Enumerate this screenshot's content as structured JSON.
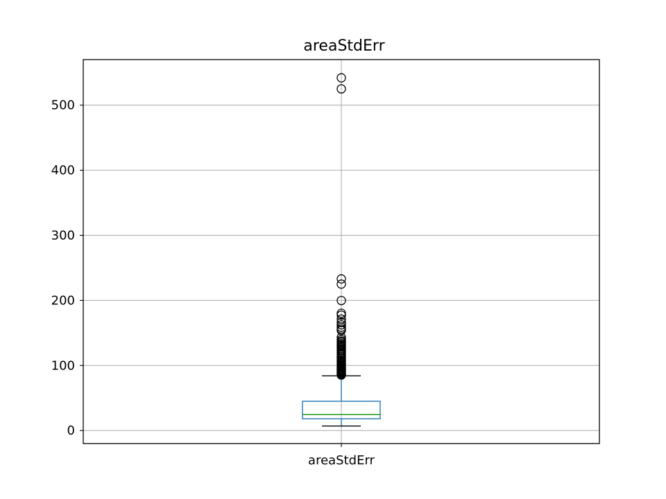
{
  "chart_data": {
    "type": "box",
    "title": "areaStdErr",
    "xlabel": "",
    "ylabel": "",
    "categories": [
      "areaStdErr"
    ],
    "ylim": [
      -20,
      570
    ],
    "yticks": [
      0,
      100,
      200,
      300,
      400,
      500
    ],
    "grid": true,
    "legend": "none",
    "box": {
      "whisker_low": 7,
      "q1": 18,
      "median": 24.5,
      "q3": 45,
      "whisker_high": 84,
      "outliers": [
        542,
        525,
        233,
        225,
        199.8,
        180.2,
        177.3,
        171.3,
        166.1,
        162.4,
        158.7,
        156.0,
        153.8,
        143.3,
        139.9,
        137.5,
        135.9,
        133.8,
        131.9,
        130.0,
        128.7,
        126.5,
        124.4,
        122.7,
        120.8,
        118.4,
        116.2,
        114.2,
        112.1,
        110.3,
        108.2,
        106.7,
        104.9,
        103.2,
        101.6,
        100.2,
        98.8,
        97.1,
        95.7,
        94.4,
        93.1,
        91.8,
        90.5,
        89.2,
        88.0,
        87.0,
        86.2,
        85.3
      ]
    },
    "colors": {
      "box": "#1f77b4",
      "median": "#2ca02c",
      "whisker": "#1f77b4",
      "cap": "#000000",
      "outlier": "#000000",
      "grid": "#b0b0b0",
      "axes": "#000000"
    }
  }
}
